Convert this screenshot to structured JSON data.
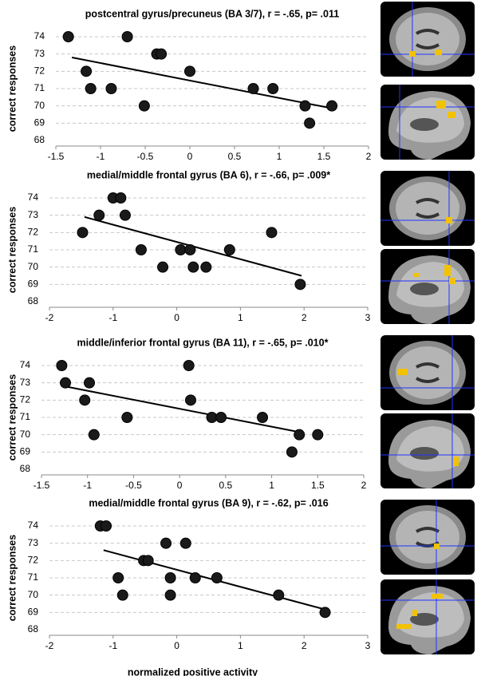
{
  "chart_data": [
    {
      "type": "scatter",
      "title": "postcentral gyrus/precuneus (BA 3/7), r = -.65, p= .011",
      "ylabel": "correct responses",
      "x": [
        -1.36,
        -0.7,
        -1.16,
        -1.11,
        -0.88,
        -0.37,
        -0.32,
        -0.51,
        0.0,
        0.71,
        0.93,
        1.29,
        1.34,
        1.59
      ],
      "values": [
        74,
        74,
        72,
        71,
        71,
        73,
        73,
        70,
        72,
        71,
        71,
        70,
        69,
        70
      ],
      "fit": {
        "x": [
          -1.32,
          1.6
        ],
        "values": [
          72.8,
          69.85
        ]
      },
      "color": "#1a1a1a",
      "grid": true,
      "xlim": [
        -1.5,
        2
      ],
      "xticks": [
        -1.5,
        -1,
        -0.5,
        0,
        0.5,
        1,
        1.5,
        2
      ],
      "ylim": [
        68,
        74
      ],
      "yticks": [
        68,
        69,
        70,
        71,
        72,
        73,
        74
      ]
    },
    {
      "type": "scatter",
      "title": "medial/middle frontal gyrus (BA 6), r = -.66, p= .009*",
      "ylabel": "correct responses",
      "x": [
        -1.48,
        -1.22,
        -1.0,
        -0.88,
        -0.81,
        -0.56,
        -0.22,
        0.06,
        0.21,
        0.26,
        0.46,
        0.83,
        1.49,
        1.94
      ],
      "values": [
        72,
        73,
        74,
        74,
        73,
        71,
        70,
        71,
        71,
        70,
        70,
        71,
        72,
        69
      ],
      "fit": {
        "x": [
          -1.45,
          1.96
        ],
        "values": [
          72.9,
          69.5
        ]
      },
      "color": "#1a1a1a",
      "grid": true,
      "xlim": [
        -2,
        3
      ],
      "xticks": [
        -2,
        -1,
        0,
        1,
        2,
        3
      ],
      "ylim": [
        68,
        74
      ],
      "yticks": [
        68,
        69,
        70,
        71,
        72,
        73,
        74
      ]
    },
    {
      "type": "scatter",
      "title": "middle/inferior frontal gyrus (BA 11), r = -.65, p= .010*",
      "ylabel": "correct responses",
      "x": [
        -1.28,
        -1.24,
        -0.98,
        -1.03,
        -0.93,
        -0.57,
        0.1,
        0.12,
        0.35,
        0.45,
        0.9,
        1.3,
        1.5,
        1.22
      ],
      "values": [
        74,
        73,
        73,
        72,
        70,
        71,
        74,
        72,
        71,
        71,
        71,
        70,
        70,
        69
      ],
      "fit": {
        "x": [
          -1.25,
          1.3
        ],
        "values": [
          72.8,
          70.15
        ]
      },
      "color": "#1a1a1a",
      "grid": true,
      "xlim": [
        -1.5,
        2
      ],
      "xticks": [
        -1.5,
        -1,
        -0.5,
        0,
        0.5,
        1,
        1.5,
        2
      ],
      "ylim": [
        68,
        74
      ],
      "yticks": [
        68,
        69,
        70,
        71,
        72,
        73,
        74
      ]
    },
    {
      "type": "scatter",
      "title": "medial/middle frontal gyrus (BA 9), r = -.62, p= .016",
      "ylabel": "correct responses",
      "xlabel": "normalized positive activity",
      "x": [
        -1.2,
        -1.11,
        -0.17,
        0.14,
        -0.52,
        -0.45,
        -0.92,
        -0.85,
        -0.1,
        -0.1,
        0.29,
        0.63,
        1.6,
        2.33
      ],
      "values": [
        74,
        74,
        73,
        73,
        72,
        72,
        71,
        70,
        71,
        70,
        71,
        71,
        70,
        69
      ],
      "fit": {
        "x": [
          -1.15,
          2.3
        ],
        "values": [
          72.6,
          69.2
        ]
      },
      "color": "#1a1a1a",
      "grid": true,
      "xlim": [
        -2,
        3
      ],
      "xticks": [
        -2,
        -1,
        0,
        1,
        2,
        3
      ],
      "ylim": [
        68,
        74
      ],
      "yticks": [
        68,
        69,
        70,
        71,
        72,
        73,
        74
      ]
    }
  ]
}
